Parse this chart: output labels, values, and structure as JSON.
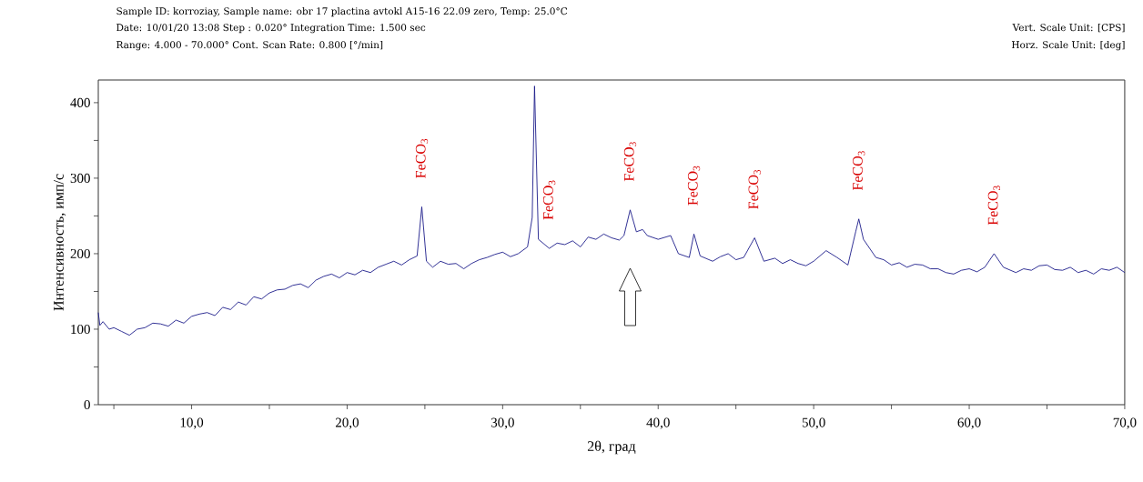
{
  "chart_data": {
    "type": "line",
    "xlabel": "2θ, град",
    "ylabel": "Интенсивность, имп/с",
    "annotations": [
      "Sample ID: korroziay,   Sample name: obr  17 plactina avtokl  A15-16 22.09 zero,  Temp: 25.0°C",
      "Date: 10/01/20 13:08  Step : 0.020° Integration Time: 1.500 sec",
      "Range: 4.000 - 70.000° Cont. Scan Rate: 0.800 [°/min]",
      "Vert. Scale Unit: [CPS]",
      "Horz. Scale Unit: [deg]",
      {
        "text": "FeCO$_{3}$",
        "x": 24.8,
        "y": 262
      },
      {
        "text": "FeCO$_{3}$",
        "x": 33.0,
        "y": 207
      },
      {
        "text": "FeCO$_{3}$",
        "x": 38.2,
        "y": 258
      },
      {
        "text": "FeCO$_{3}$",
        "x": 42.3,
        "y": 226
      },
      {
        "text": "FeCO$_{3}$",
        "x": 46.2,
        "y": 221
      },
      {
        "text": "FeCO$_{3}$",
        "x": 52.9,
        "y": 246
      },
      {
        "text": "FeCO$_{3}$",
        "x": 61.6,
        "y": 200
      }
    ],
    "series": [
      {
        "color": "#1c1c8a",
        "x": [
          4.0,
          4.1,
          4.3,
          4.7,
          5.0,
          5.5,
          6.0,
          6.5,
          7.0,
          7.5,
          8.0,
          8.5,
          9.0,
          9.5,
          10.0,
          10.5,
          11.0,
          11.5,
          12.0,
          12.5,
          13.0,
          13.5,
          14.0,
          14.5,
          15.0,
          15.5,
          16.0,
          16.5,
          17.0,
          17.5,
          18.0,
          18.5,
          19.0,
          19.5,
          20.0,
          20.5,
          21.0,
          21.5,
          22.0,
          22.5,
          23.0,
          23.5,
          24.0,
          24.5,
          24.8,
          25.1,
          25.5,
          26.0,
          26.5,
          27.0,
          27.5,
          28.0,
          28.5,
          29.0,
          29.5,
          30.0,
          30.5,
          31.0,
          31.6,
          31.9,
          32.05,
          32.3,
          33.0,
          33.5,
          34.0,
          34.5,
          35.0,
          35.5,
          36.0,
          36.5,
          37.0,
          37.5,
          37.8,
          38.2,
          38.6,
          39.0,
          39.3,
          40.0,
          40.8,
          41.3,
          42.0,
          42.3,
          42.7,
          43.5,
          44.0,
          44.5,
          45.0,
          45.5,
          46.2,
          46.8,
          47.5,
          48.0,
          48.5,
          49.0,
          49.5,
          50.0,
          50.8,
          51.5,
          52.2,
          52.7,
          52.9,
          53.2,
          54.0,
          54.5,
          55.0,
          55.5,
          56.0,
          56.5,
          57.0,
          57.5,
          58.0,
          58.5,
          59.0,
          59.5,
          60.0,
          60.5,
          61.0,
          61.6,
          62.2,
          63.0,
          63.5,
          64.0,
          64.5,
          65.0,
          65.5,
          66.0,
          66.5,
          67.0,
          67.5,
          68.0,
          68.5,
          69.0,
          69.5,
          70.0
        ],
        "values": [
          122,
          105,
          110,
          100,
          102,
          97,
          92,
          100,
          102,
          108,
          107,
          104,
          112,
          108,
          117,
          120,
          122,
          118,
          129,
          126,
          136,
          132,
          143,
          140,
          148,
          152,
          153,
          158,
          160,
          155,
          165,
          170,
          173,
          168,
          175,
          172,
          178,
          175,
          182,
          186,
          190,
          185,
          192,
          197,
          262,
          190,
          182,
          190,
          186,
          187,
          180,
          187,
          192,
          195,
          199,
          202,
          196,
          200,
          209,
          248,
          422,
          219,
          207,
          214,
          212,
          217,
          209,
          222,
          219,
          226,
          221,
          218,
          224,
          258,
          229,
          232,
          224,
          219,
          224,
          200,
          195,
          226,
          197,
          190,
          196,
          200,
          192,
          195,
          221,
          190,
          194,
          187,
          192,
          187,
          184,
          190,
          204,
          195,
          185,
          229,
          246,
          219,
          195,
          192,
          185,
          188,
          182,
          186,
          185,
          180,
          180,
          175,
          173,
          178,
          180,
          176,
          182,
          200,
          182,
          175,
          180,
          178,
          184,
          185,
          179,
          178,
          182,
          175,
          178,
          173,
          180,
          178,
          182,
          175
        ],
        "line_style": "solid"
      }
    ],
    "xlim": [
      4,
      70
    ],
    "ylim": [
      0,
      430
    ],
    "xticks": [
      {
        "value": 5,
        "label": null
      },
      {
        "value": 10,
        "label": "10,0"
      },
      {
        "value": 15,
        "label": null
      },
      {
        "value": 20,
        "label": "20,0"
      },
      {
        "value": 25,
        "label": null
      },
      {
        "value": 30,
        "label": "30,0"
      },
      {
        "value": 35,
        "label": null
      },
      {
        "value": 40,
        "label": "40,0"
      },
      {
        "value": 45,
        "label": null
      },
      {
        "value": 50,
        "label": "50,0"
      },
      {
        "value": 55,
        "label": null
      },
      {
        "value": 60,
        "label": "60,0"
      },
      {
        "value": 65,
        "label": null
      },
      {
        "value": 70,
        "label": "70,0"
      }
    ],
    "yticks": [
      0,
      {
        "value": 50,
        "label": null
      },
      100,
      {
        "value": 150,
        "label": null
      },
      200,
      {
        "value": 250,
        "label": null
      },
      300,
      {
        "value": 350,
        "label": null
      },
      400
    ],
    "grid": false,
    "marker": "none"
  }
}
